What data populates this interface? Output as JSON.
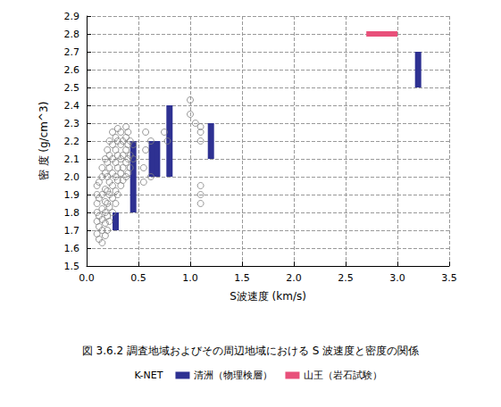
{
  "chart_data": {
    "type": "scatter",
    "title": "図 3.6.2 調査地域およびその周辺地域における S 波速度と密度の関係",
    "x_label": "S波速度 (km/s)",
    "y_label": "密 度 (g/cm^3)",
    "xlim": [
      0,
      3.5
    ],
    "xticks": [
      {
        "value": 0,
        "label": "0.0"
      },
      0.5,
      {
        "value": 1,
        "label": "1.0"
      },
      1.5,
      {
        "value": 2,
        "label": "2.0"
      },
      2.5,
      {
        "value": 3,
        "label": "3.0"
      },
      3.5
    ],
    "ylim": [
      1.5,
      2.9
    ],
    "yticks": [
      1.5,
      1.6,
      1.7,
      1.8,
      1.9,
      {
        "value": 2,
        "label": "2.0"
      },
      2.1,
      2.2,
      2.3,
      2.4,
      2.5,
      2.6,
      2.7,
      2.8,
      2.9
    ],
    "grid": true,
    "legend": "bottom",
    "series": [
      {
        "name": "K-NET",
        "type": "scatter",
        "marker": "circle_open",
        "color": "#808080",
        "x": [
          0.1,
          0.1,
          0.1,
          0.1,
          0.1,
          0.1,
          0.12,
          0.12,
          0.12,
          0.12,
          0.12,
          0.15,
          0.15,
          0.15,
          0.15,
          0.15,
          0.15,
          0.15,
          0.18,
          0.18,
          0.18,
          0.18,
          0.18,
          0.18,
          0.18,
          0.2,
          0.2,
          0.2,
          0.2,
          0.2,
          0.2,
          0.2,
          0.22,
          0.22,
          0.22,
          0.22,
          0.22,
          0.22,
          0.22,
          0.25,
          0.25,
          0.25,
          0.25,
          0.25,
          0.25,
          0.25,
          0.28,
          0.28,
          0.28,
          0.28,
          0.28,
          0.28,
          0.3,
          0.3,
          0.3,
          0.3,
          0.3,
          0.3,
          0.33,
          0.33,
          0.33,
          0.33,
          0.33,
          0.35,
          0.35,
          0.35,
          0.35,
          0.38,
          0.38,
          0.38,
          0.38,
          0.38,
          0.4,
          0.4,
          0.4,
          0.4,
          0.42,
          0.42,
          0.42,
          0.45,
          0.45,
          0.55,
          0.55,
          0.57,
          0.57,
          0.62,
          0.62,
          0.75,
          0.78,
          1.0,
          1.0,
          1.05,
          1.1,
          1.1,
          1.1,
          1.1,
          1.1,
          1.1
        ],
        "values": [
          1.68,
          1.75,
          1.8,
          1.85,
          1.9,
          1.95,
          1.65,
          1.72,
          1.78,
          1.88,
          1.97,
          1.63,
          1.7,
          1.76,
          1.82,
          1.9,
          2.0,
          2.05,
          1.67,
          1.74,
          1.8,
          1.86,
          1.93,
          2.02,
          2.1,
          1.7,
          1.78,
          1.85,
          1.92,
          2.0,
          2.08,
          2.15,
          1.75,
          1.83,
          1.9,
          1.97,
          2.05,
          2.12,
          2.2,
          1.8,
          1.88,
          1.95,
          2.02,
          2.1,
          2.18,
          2.25,
          1.85,
          1.92,
          2.0,
          2.08,
          2.15,
          2.22,
          1.9,
          1.98,
          2.05,
          2.12,
          2.2,
          2.27,
          1.95,
          2.02,
          2.1,
          2.18,
          2.25,
          1.98,
          2.05,
          2.12,
          2.2,
          2.0,
          2.08,
          2.15,
          2.22,
          2.28,
          2.02,
          2.1,
          2.18,
          2.25,
          2.05,
          2.12,
          2.2,
          2.1,
          2.18,
          1.97,
          2.05,
          2.15,
          2.25,
          2.0,
          2.2,
          2.25,
          2.2,
          2.35,
          2.43,
          2.3,
          1.85,
          1.9,
          1.95,
          2.2,
          2.25,
          2.28
        ]
      },
      {
        "name": "清洲（物理検層）",
        "type": "vrange",
        "marker": "rect",
        "color": "#2e3192",
        "x": [
          0.28,
          0.45,
          0.63,
          0.68,
          0.8,
          1.2,
          3.2
        ],
        "low": [
          1.7,
          1.8,
          2.0,
          2.0,
          2.0,
          2.1,
          2.5
        ],
        "high": [
          1.8,
          2.2,
          2.2,
          2.2,
          2.4,
          2.3,
          2.7
        ]
      },
      {
        "name": "山王（岩石試験）",
        "type": "hrange",
        "marker": "rect",
        "color": "#e8507a",
        "y": [
          2.8
        ],
        "x_low": [
          2.7
        ],
        "x_high": [
          3.0
        ]
      }
    ]
  }
}
